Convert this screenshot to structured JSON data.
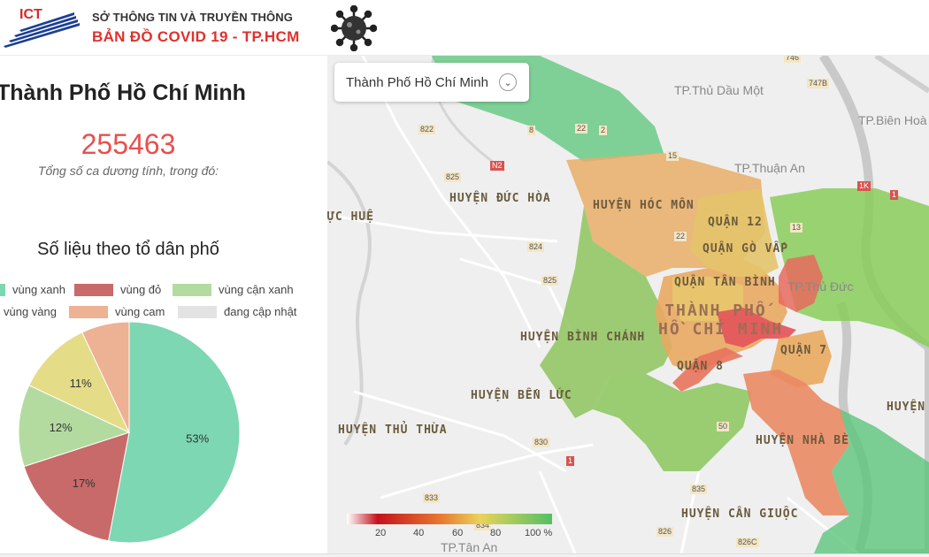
{
  "header": {
    "org_logo_text": "ICT",
    "org_name": "SỞ THÔNG TIN VÀ TRUYỀN THÔNG",
    "app_title": "BẢN ĐỒ  COVID 19 - TP.HCM"
  },
  "summary": {
    "city": "Thành Phố Hồ Chí Minh",
    "total_cases": "255463",
    "total_label": "Tổng số ca dương tính, trong đó:",
    "stats_title": "Số liệu theo tổ dân phố"
  },
  "legend": [
    {
      "label": "vùng xanh",
      "color": "#7dd7b2"
    },
    {
      "label": "vùng đỏ",
      "color": "#c86a6a"
    },
    {
      "label": "vùng cận xanh",
      "color": "#b3dba0"
    },
    {
      "label": "vùng vàng",
      "color": "#e5dc88"
    },
    {
      "label": "vùng cam",
      "color": "#edb194"
    },
    {
      "label": "đang cập nhật",
      "color": "#e3e3e3"
    }
  ],
  "chart_data": {
    "type": "pie",
    "slices": [
      {
        "label": "vùng xanh",
        "value": 53,
        "display": "53%",
        "color": "#7dd7b2"
      },
      {
        "label": "vùng đỏ",
        "value": 17,
        "display": "17%",
        "color": "#c86a6a"
      },
      {
        "label": "vùng cận xanh",
        "value": 12,
        "display": "12%",
        "color": "#b3dba0"
      },
      {
        "label": "vùng vàng",
        "value": 11,
        "display": "11%",
        "color": "#e5dc88"
      },
      {
        "label": "vùng cam",
        "value": 7,
        "display": "",
        "color": "#edb194"
      }
    ]
  },
  "map": {
    "select_value": "Thành Phố Hồ Chí Minh",
    "scale_labels": [
      "20",
      "40",
      "60",
      "80",
      "100 %"
    ],
    "places": {
      "thu_dau_mot": "TP.Thủ Dầu Một",
      "bien_hoa": "TP.Biên Hoà",
      "thuan_an": "TP.Thuận An",
      "thu_duc": "TP.Thủ Đức",
      "tan_an": "TP.Tân An",
      "duc_hoa": "HUYỆN ĐỨC HÒA",
      "hoc_mon": "HUYỆN HÓC MÔN",
      "q12": "QUẬN 12",
      "go_vap": "QUẬN GÒ VẤP",
      "tan_binh": "QUẬN TÂN BÌNH",
      "hcm_line1": "THÀNH PHỐ",
      "hcm_line2": "HỒ CHÍ MINH",
      "binh_chanh": "HUYỆN BÌNH CHÁNH",
      "q8": "QUẬN 8",
      "q7": "QUẬN 7",
      "ben_luc": "HUYỆN BẾN LỨC",
      "thu_thua": "HUYỆN THỦ THỪA",
      "nha_be": "HUYỆN NHÀ BÈ",
      "can_giuoc": "HUYỆN CẦN GIUỘC",
      "huyen_right": "HUYỆN",
      "c_hue": "ỰC HUỆ"
    },
    "roads": {
      "r746": "746",
      "r747b": "747B",
      "r822": "822",
      "r8": "8",
      "r22": "22",
      "r2": "2",
      "n2": "N2",
      "r15": "15",
      "r825a": "825",
      "r824": "824",
      "r825b": "825",
      "r1k": "1K",
      "r1a": "1",
      "r13": "13",
      "r22b": "22",
      "r830": "830",
      "r1b": "1",
      "r50": "50",
      "r833": "833",
      "r834": "834",
      "r835": "835",
      "r826": "826",
      "r826c": "826C"
    }
  }
}
